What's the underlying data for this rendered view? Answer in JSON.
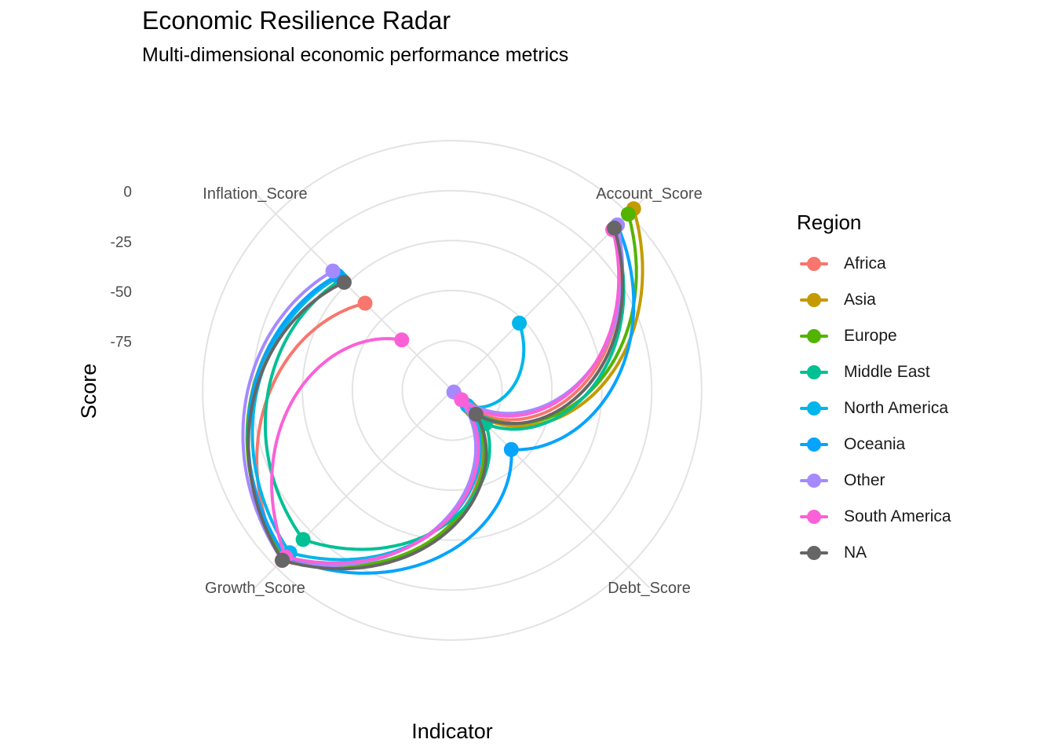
{
  "chart_data": {
    "type": "radar",
    "title": "Economic Resilience Radar",
    "subtitle": "Multi-dimensional economic performance metrics",
    "xlabel": "Indicator",
    "ylabel": "Score",
    "legend_title": "Region",
    "legend_position": "right",
    "grid": true,
    "rlim": [
      -100,
      40
    ],
    "radial_ticks": [
      0,
      -25,
      -50,
      -75
    ],
    "radial_tick_labels": [
      "0",
      "-25",
      "-50",
      "-75"
    ],
    "categories": [
      "Account_Score",
      "Debt_Score",
      "Growth_Score",
      "Inflation_Score"
    ],
    "series": [
      {
        "name": "Africa",
        "color": "#F8766D",
        "values": [
          13.8,
          -87.8,
          20.5,
          -38.3
        ]
      },
      {
        "name": "Asia",
        "color": "#C49A00",
        "values": [
          28.6,
          -82.8,
          19.0,
          -19.8
        ]
      },
      {
        "name": "Europe",
        "color": "#53B400",
        "values": [
          24.8,
          -85.6,
          19.0,
          -19.0
        ]
      },
      {
        "name": "Middle East",
        "color": "#00C094",
        "values": [
          14.4,
          -76.4,
          5.6,
          -21.5
        ]
      },
      {
        "name": "North America",
        "color": "#00B6EB",
        "values": [
          -52.4,
          -89.3,
          15.0,
          -19.5
        ]
      },
      {
        "name": "Oceania",
        "color": "#06A4FF",
        "values": [
          17.1,
          -58.1,
          17.9,
          -18.5
        ]
      },
      {
        "name": "Other",
        "color": "#A58AFF",
        "values": [
          17.1,
          -98.8,
          20.3,
          -15.5
        ]
      },
      {
        "name": "South America",
        "color": "#FB61D7",
        "values": [
          13.8,
          -93.4,
          17.9,
          -64.3
        ]
      },
      {
        "name": "NA",
        "color": "#666666",
        "values": [
          14.9,
          -83.1,
          20.3,
          -23.5
        ]
      }
    ]
  }
}
